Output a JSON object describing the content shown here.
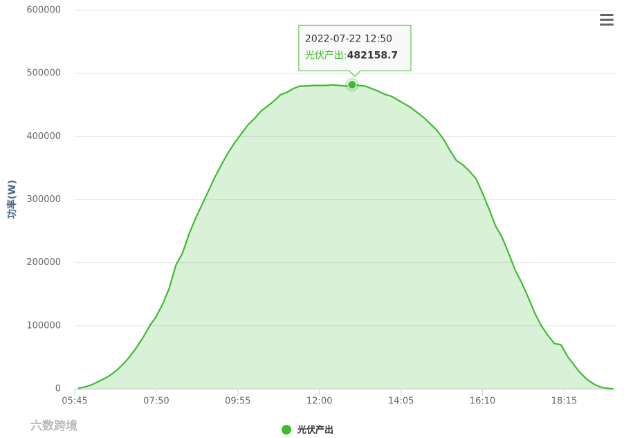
{
  "chart_data": {
    "type": "area",
    "y_axis_title": "功率(W)",
    "x": [
      "05:50",
      "06:00",
      "06:10",
      "06:20",
      "06:30",
      "06:40",
      "06:50",
      "07:00",
      "07:10",
      "07:20",
      "07:30",
      "07:40",
      "07:50",
      "08:00",
      "08:10",
      "08:20",
      "08:30",
      "08:40",
      "08:50",
      "09:00",
      "09:10",
      "09:20",
      "09:30",
      "09:40",
      "09:50",
      "10:00",
      "10:10",
      "10:20",
      "10:30",
      "10:40",
      "10:50",
      "11:00",
      "11:10",
      "11:20",
      "11:30",
      "11:40",
      "11:50",
      "12:00",
      "12:10",
      "12:20",
      "12:30",
      "12:40",
      "12:50",
      "13:00",
      "13:10",
      "13:20",
      "13:30",
      "13:40",
      "13:50",
      "14:00",
      "14:10",
      "14:20",
      "14:30",
      "14:40",
      "14:50",
      "15:00",
      "15:10",
      "15:20",
      "15:30",
      "15:40",
      "15:50",
      "16:00",
      "16:10",
      "16:20",
      "16:30",
      "16:40",
      "16:50",
      "17:00",
      "17:10",
      "17:20",
      "17:30",
      "17:40",
      "17:50",
      "18:00",
      "18:10",
      "18:20",
      "18:30",
      "18:40",
      "18:50",
      "19:00",
      "19:10",
      "19:20",
      "19:30"
    ],
    "series": [
      {
        "name": "光伏产出",
        "color": "#3fbb30",
        "values": [
          1000,
          3000,
          6000,
          11000,
          16000,
          22000,
          30000,
          40000,
          52000,
          66000,
          82000,
          100000,
          115000,
          135000,
          160000,
          196000,
          215000,
          245000,
          270000,
          292000,
          314000,
          336000,
          356000,
          374000,
          390000,
          404000,
          418000,
          428000,
          440000,
          448000,
          456000,
          466000,
          470000,
          476000,
          480000,
          480000,
          481000,
          481000,
          481000,
          482000,
          481000,
          480000,
          482158.7,
          481000,
          480000,
          476000,
          472000,
          467000,
          464000,
          458000,
          452000,
          446000,
          438000,
          430000,
          420000,
          410000,
          396000,
          378000,
          362000,
          355000,
          345000,
          333000,
          310000,
          285000,
          258000,
          240000,
          215000,
          188000,
          168000,
          145000,
          120000,
          100000,
          85000,
          72000,
          70000,
          52000,
          38000,
          25000,
          15000,
          8000,
          3000,
          1000,
          0
        ]
      }
    ],
    "xlim": [
      "05:45",
      "19:35"
    ],
    "xticks": [
      "05:45",
      "07:50",
      "09:55",
      "12:00",
      "14:05",
      "16:10",
      "18:15"
    ],
    "ylim": [
      0,
      600000
    ],
    "yticks": [
      0,
      100000,
      200000,
      300000,
      400000,
      500000,
      600000
    ],
    "grid": true,
    "tooltip": {
      "title": "2022-07-22 12:50",
      "label": "光伏产出:"
    },
    "watermark": "六数跨境"
  }
}
